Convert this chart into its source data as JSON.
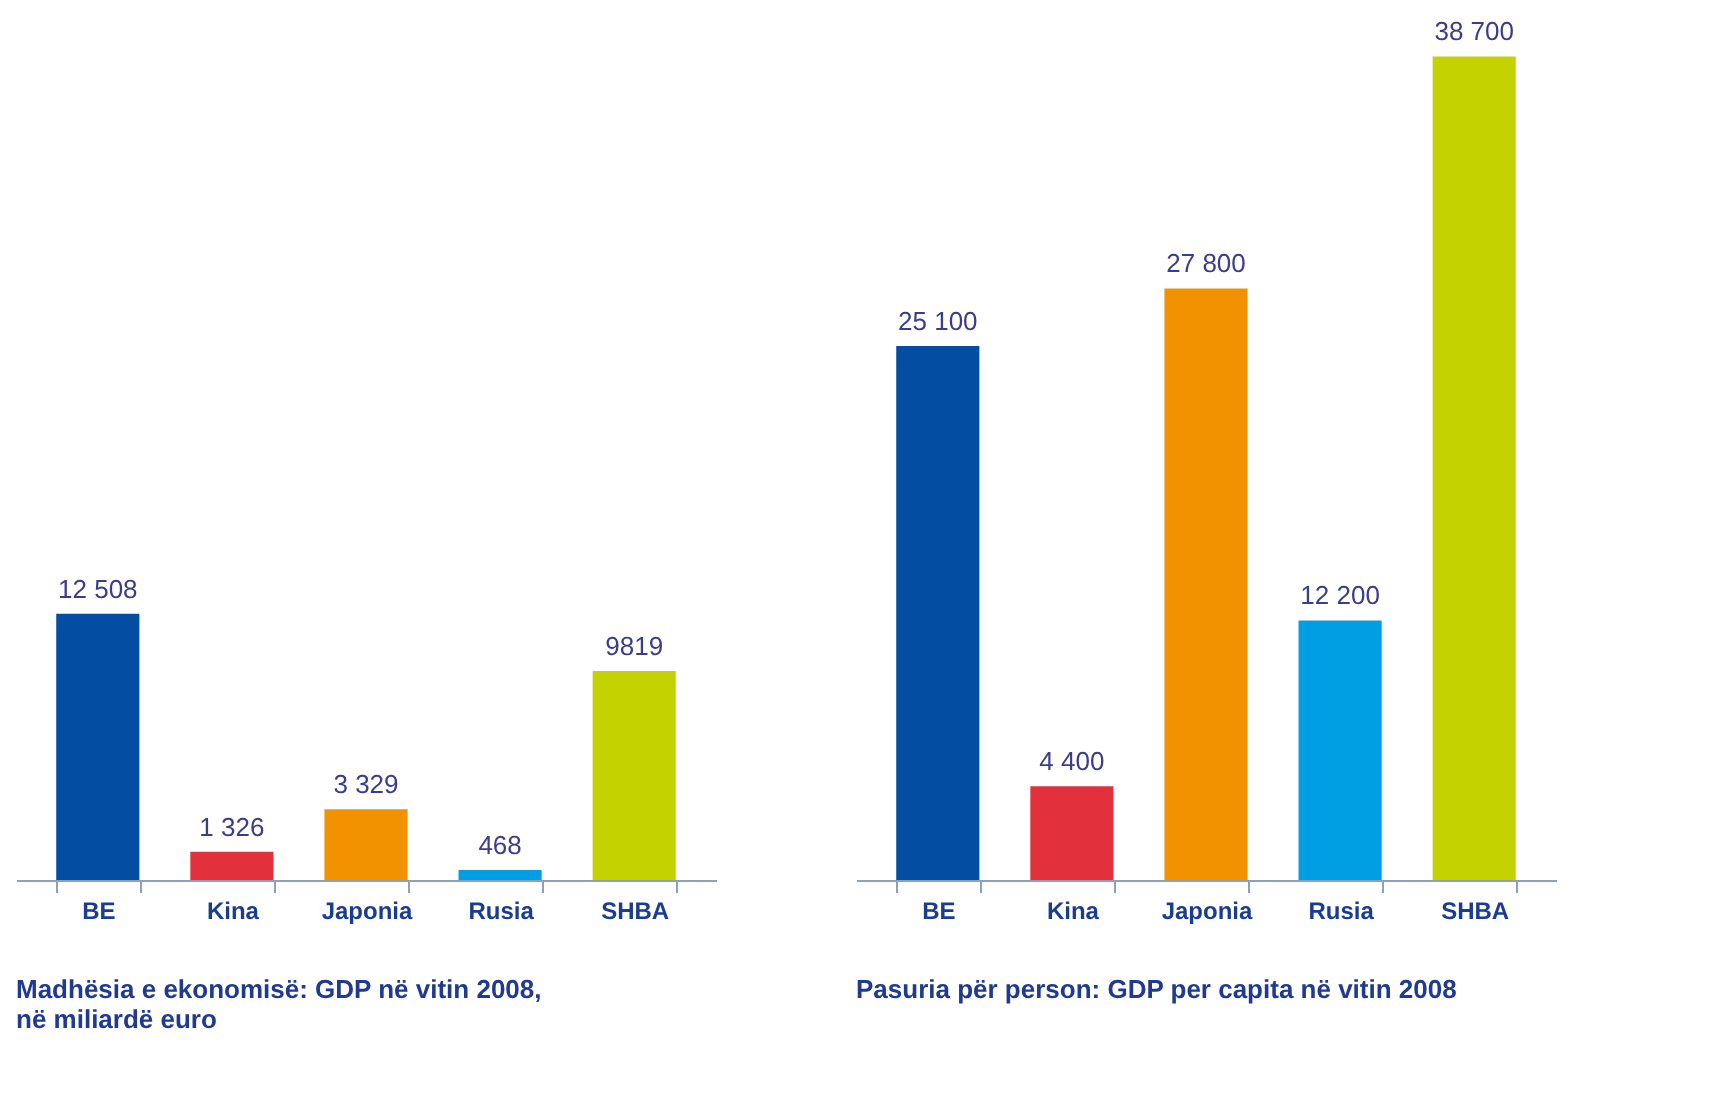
{
  "chart_data": [
    {
      "type": "bar",
      "title": [
        "Madhësia e ekonomisë: GDP në vitin 2008,",
        "në miliardë euro"
      ],
      "categories": [
        "BE",
        "Kina",
        "Japonia",
        "Rusia",
        "SHBA"
      ],
      "values": [
        12508,
        1326,
        3329,
        468,
        9819
      ],
      "colors": [
        "#034ea2",
        "#e2313c",
        "#f39200",
        "#009fe3",
        "#c4d300"
      ],
      "value_labels": [
        "12 508",
        "1 326",
        "3 329",
        "468",
        "9819"
      ]
    },
    {
      "type": "bar",
      "title": "Pasuria për person: GDP per capita në vitin 2008",
      "categories": [
        "BE",
        "Kina",
        "Japonia",
        "Rusia",
        "SHBA"
      ],
      "values": [
        25100,
        4400,
        27800,
        12200,
        38700
      ],
      "colors": [
        "#034ea2",
        "#e2313c",
        "#f39200",
        "#009fe3",
        "#c4d300"
      ],
      "value_labels": [
        "25 100",
        "4 400",
        "27 800",
        "12 200",
        "38 700"
      ]
    }
  ]
}
